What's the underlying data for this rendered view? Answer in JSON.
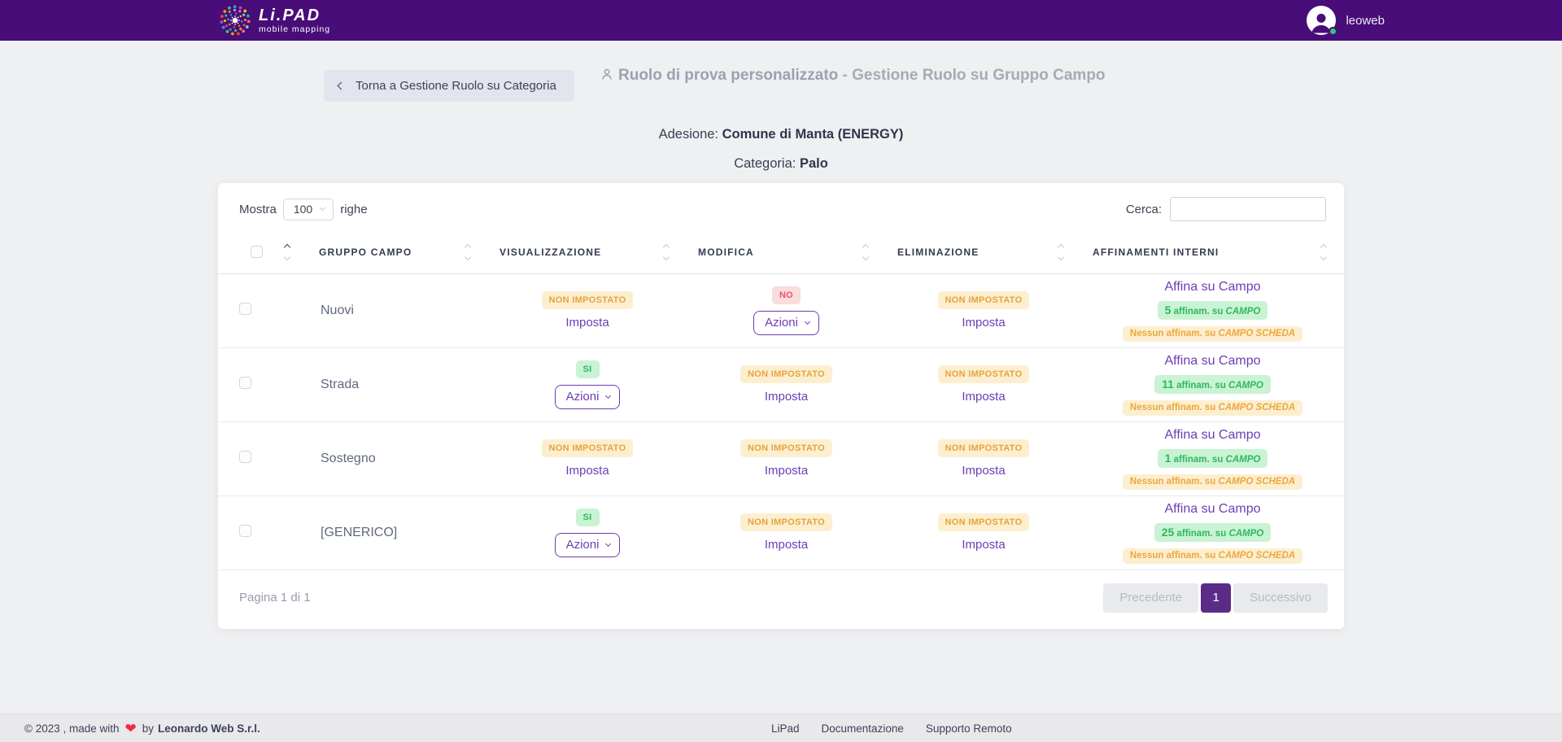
{
  "navbar": {
    "brand_name": "Li.PAD",
    "brand_tagline": "mobile mapping",
    "username": "leoweb"
  },
  "page_header": {
    "back_button": "Torna a Gestione Ruolo su Categoria",
    "title_strong": "Ruolo di prova personalizzato",
    "title_rest": "- Gestione Ruolo su Gruppo Campo",
    "adesione_label": "Adesione:",
    "adesione_value": "Comune di Manta (ENERGY)",
    "categoria_label": "Categoria:",
    "categoria_value": "Palo"
  },
  "toolbar": {
    "show_label": "Mostra",
    "page_size": "100",
    "rows_label": "righe",
    "search_label": "Cerca:",
    "search_value": ""
  },
  "table": {
    "columns": [
      "GRUPPO CAMPO",
      "VISUALIZZAZIONE",
      "MODIFICA",
      "ELIMINAZIONE",
      "AFFINAMENTI INTERNI"
    ],
    "rows": [
      {
        "gruppo": "Nuovi",
        "visualizzazione": {
          "badge": "NON IMPOSTATO",
          "variant": "warning",
          "control": "link",
          "control_label": "Imposta"
        },
        "modifica": {
          "badge": "NO",
          "variant": "danger",
          "control": "dropdown",
          "control_label": "Azioni"
        },
        "eliminazione": {
          "badge": "NON IMPOSTATO",
          "variant": "warning",
          "control": "link",
          "control_label": "Imposta"
        },
        "affinamenti": {
          "link": "Affina su Campo",
          "count": "5",
          "count_text": "affinam. su",
          "count_target": "CAMPO",
          "none_text": "Nessun affinam. su",
          "none_target": "CAMPO SCHEDA"
        }
      },
      {
        "gruppo": "Strada",
        "visualizzazione": {
          "badge": "SI",
          "variant": "success",
          "control": "dropdown",
          "control_label": "Azioni"
        },
        "modifica": {
          "badge": "NON IMPOSTATO",
          "variant": "warning",
          "control": "link",
          "control_label": "Imposta"
        },
        "eliminazione": {
          "badge": "NON IMPOSTATO",
          "variant": "warning",
          "control": "link",
          "control_label": "Imposta"
        },
        "affinamenti": {
          "link": "Affina su Campo",
          "count": "11",
          "count_text": "affinam. su",
          "count_target": "CAMPO",
          "none_text": "Nessun affinam. su",
          "none_target": "CAMPO SCHEDA"
        }
      },
      {
        "gruppo": "Sostegno",
        "visualizzazione": {
          "badge": "NON IMPOSTATO",
          "variant": "warning",
          "control": "link",
          "control_label": "Imposta"
        },
        "modifica": {
          "badge": "NON IMPOSTATO",
          "variant": "warning",
          "control": "link",
          "control_label": "Imposta"
        },
        "eliminazione": {
          "badge": "NON IMPOSTATO",
          "variant": "warning",
          "control": "link",
          "control_label": "Imposta"
        },
        "affinamenti": {
          "link": "Affina su Campo",
          "count": "1",
          "count_text": "affinam. su",
          "count_target": "CAMPO",
          "none_text": "Nessun affinam. su",
          "none_target": "CAMPO SCHEDA"
        }
      },
      {
        "gruppo": "[GENERICO]",
        "visualizzazione": {
          "badge": "SI",
          "variant": "success",
          "control": "dropdown",
          "control_label": "Azioni"
        },
        "modifica": {
          "badge": "NON IMPOSTATO",
          "variant": "warning",
          "control": "link",
          "control_label": "Imposta"
        },
        "eliminazione": {
          "badge": "NON IMPOSTATO",
          "variant": "warning",
          "control": "link",
          "control_label": "Imposta"
        },
        "affinamenti": {
          "link": "Affina su Campo",
          "count": "25",
          "count_text": "affinam. su",
          "count_target": "CAMPO",
          "none_text": "Nessun affinam. su",
          "none_target": "CAMPO SCHEDA"
        }
      }
    ]
  },
  "pagination": {
    "info": "Pagina 1 di 1",
    "prev_label": "Precedente",
    "current_page": "1",
    "next_label": "Successivo"
  },
  "footer": {
    "copyright_prefix": "© 2023 , made with",
    "copyright_suffix": "by",
    "company": "Leonardo Web S.r.l.",
    "links": [
      "LiPad",
      "Documentazione",
      "Supporto Remoto"
    ]
  },
  "colors": {
    "navbar_purple": "#480d78",
    "accent_purple": "#6d3cb5",
    "active_page_purple": "#5b2c87",
    "warning_text": "#e7a33c",
    "warning_bg": "#fcefd0",
    "danger_text": "#e8556d",
    "danger_bg": "#fadbde",
    "success_text": "#2eb85c",
    "success_bg": "#c9f3d4"
  }
}
